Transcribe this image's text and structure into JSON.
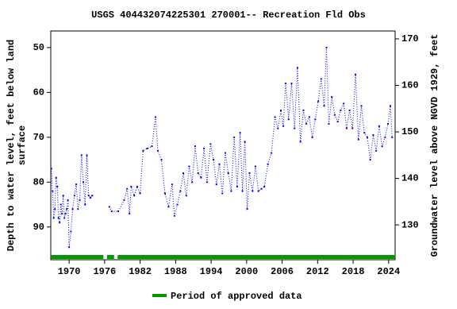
{
  "chart_data": {
    "type": "line",
    "title": "USGS 404432074225301 270001-- Recreation Fld Obs",
    "ylabel": [
      "Depth to water level, feet below land",
      "surface"
    ],
    "y2label": "Groundwater level above NGVD 1929, feet",
    "xlim": [
      1966.9,
      2025.1
    ],
    "xticks": [
      1970,
      1976,
      1982,
      1988,
      1994,
      2000,
      2006,
      2012,
      2018,
      2024
    ],
    "ylim": [
      97.3,
      46.3
    ],
    "yticks": [
      50,
      60,
      70,
      80,
      90
    ],
    "y2lim": [
      122.5,
      171.7
    ],
    "y2ticks": [
      130,
      140,
      150,
      160,
      170
    ],
    "series": [
      {
        "name": "Depth to water level",
        "color": "#0000ff",
        "x": [
          1967.0,
          1967.2,
          1967.4,
          1967.6,
          1967.8,
          1968.0,
          1968.2,
          1968.4,
          1968.6,
          1968.8,
          1969.0,
          1969.2,
          1969.4,
          1969.6,
          1969.8,
          1970.0,
          1970.3,
          1970.6,
          1970.9,
          1971.2,
          1971.5,
          1971.8,
          1972.1,
          1972.4,
          1972.7,
          1973.0,
          1973.3,
          1973.6,
          1973.9,
          1975.0,
          1976.8,
          1977.2,
          1978.3,
          1979.3,
          1979.8,
          1980.2,
          1980.5,
          1981.0,
          1981.5,
          1982.0,
          1982.5,
          1983.2,
          1984.0,
          1984.6,
          1985.0,
          1985.6,
          1986.2,
          1986.8,
          1987.4,
          1987.8,
          1988.3,
          1988.8,
          1989.3,
          1989.8,
          1990.3,
          1990.8,
          1991.3,
          1991.8,
          1992.3,
          1992.8,
          1993.3,
          1993.9,
          1994.4,
          1994.9,
          1995.4,
          1995.9,
          1996.4,
          1996.9,
          1997.4,
          1997.9,
          1998.4,
          1998.9,
          1999.3,
          1999.7,
          2000.1,
          2000.5,
          2001.0,
          2001.5,
          2002.0,
          2002.5,
          2003.0,
          2003.6,
          2004.2,
          2004.8,
          2005.3,
          2005.8,
          2006.2,
          2006.6,
          2007.1,
          2007.6,
          2008.1,
          2008.6,
          2009.1,
          2009.6,
          2010.1,
          2010.6,
          2011.1,
          2011.6,
          2012.1,
          2012.6,
          2013.1,
          2013.5,
          2013.9,
          2014.4,
          2014.9,
          2015.4,
          2015.9,
          2016.4,
          2016.9,
          2017.4,
          2017.9,
          2018.4,
          2018.9,
          2019.4,
          2019.9,
          2020.4,
          2020.9,
          2021.4,
          2021.9,
          2022.4,
          2022.9,
          2023.4,
          2023.9,
          2024.3,
          2024.6
        ],
        "values": [
          77,
          82,
          88,
          86,
          79,
          81,
          88,
          89,
          85,
          87,
          83,
          88,
          87,
          86,
          84,
          94.5,
          91,
          86,
          83,
          80.5,
          86,
          84,
          74,
          80,
          85,
          74,
          83,
          83.5,
          83,
          null,
          85.5,
          86.5,
          86.5,
          84,
          81.5,
          87,
          81,
          83,
          81,
          82.5,
          73,
          72.5,
          72,
          65.5,
          73,
          75,
          82.5,
          85.5,
          80.5,
          87.5,
          85,
          82,
          78,
          83,
          76.5,
          80,
          72,
          78,
          79,
          72.5,
          80,
          71.5,
          75,
          80.5,
          76,
          82.5,
          73.5,
          78,
          82,
          70,
          81,
          69,
          82,
          71,
          86,
          78,
          82,
          76.5,
          82,
          81.5,
          81,
          76,
          73.5,
          65.5,
          68,
          64,
          67.5,
          58,
          66,
          58,
          68,
          54.5,
          71,
          64,
          67,
          65.5,
          70,
          66,
          62,
          57,
          63,
          50,
          67,
          61,
          65,
          66.5,
          64,
          62.5,
          68,
          64,
          68,
          56,
          70.5,
          63,
          69,
          70,
          75,
          69.5,
          73,
          67.5,
          72,
          70,
          67,
          63,
          70
        ]
      }
    ],
    "approved_periods": [
      [
        1967.0,
        1975.8
      ],
      [
        1976.4,
        1977.6
      ],
      [
        1978.2,
        2025.1
      ]
    ],
    "approved_color": "#009900",
    "legend": "Period of approved data"
  }
}
